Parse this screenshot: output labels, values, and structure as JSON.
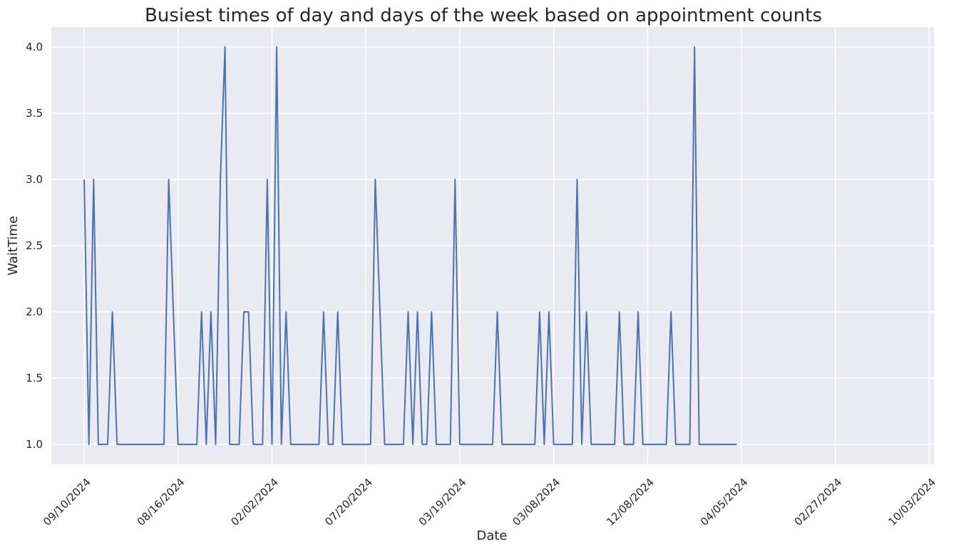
{
  "chart_data": {
    "type": "line",
    "title": "Busiest times of day and days of the week based on appointment counts",
    "xlabel": "Date",
    "ylabel": "WaitTime",
    "grid": true,
    "x_tick_labels": [
      "09/10/2024",
      "08/16/2024",
      "02/02/2024",
      "07/20/2024",
      "03/19/2024",
      "03/08/2024",
      "12/08/2024",
      "04/05/2024",
      "02/27/2024",
      "10/03/2024"
    ],
    "x_ticks": [
      0,
      20,
      40,
      60,
      80,
      100,
      120,
      140,
      160,
      180
    ],
    "y_ticks": [
      1.0,
      1.5,
      2.0,
      2.5,
      3.0,
      3.5,
      4.0
    ],
    "xlim": [
      -7,
      181
    ],
    "ylim": [
      0.85,
      4.15
    ],
    "series": [
      {
        "name": "",
        "color": "#4c72b0",
        "x": [
          0,
          1,
          2,
          3,
          4,
          5,
          6,
          7,
          8,
          9,
          10,
          11,
          12,
          13,
          14,
          15,
          16,
          17,
          18,
          19,
          20,
          21,
          22,
          23,
          24,
          25,
          26,
          27,
          28,
          29,
          30,
          31,
          32,
          33,
          34,
          35,
          36,
          37,
          38,
          39,
          40,
          41,
          42,
          43,
          44,
          45,
          46,
          47,
          48,
          49,
          50,
          51,
          52,
          53,
          54,
          55,
          56,
          57,
          58,
          59,
          60,
          61,
          62,
          63,
          64,
          65,
          66,
          67,
          68,
          69,
          70,
          71,
          72,
          73,
          74,
          75,
          76,
          77,
          78,
          79,
          80,
          81,
          82,
          83,
          84,
          85,
          86,
          87,
          88,
          89,
          90,
          91,
          92,
          93,
          94,
          95,
          96,
          97,
          98,
          99,
          100,
          101,
          102,
          103,
          104,
          105,
          106,
          107,
          108,
          109,
          110,
          111,
          112,
          113,
          114,
          115,
          116,
          117,
          118,
          119,
          120,
          121,
          122,
          123,
          124,
          125,
          126,
          127,
          128,
          129,
          130,
          131,
          132,
          133,
          134,
          135,
          136,
          137,
          138,
          139
        ],
        "values": [
          3,
          1,
          3,
          1,
          1,
          1,
          2,
          1,
          1,
          1,
          1,
          1,
          1,
          1,
          1,
          1,
          1,
          1,
          3,
          2,
          1,
          1,
          1,
          1,
          1,
          2,
          1,
          2,
          1,
          3,
          4,
          1,
          1,
          1,
          2,
          2,
          1,
          1,
          1,
          3,
          1,
          4,
          1,
          2,
          1,
          1,
          1,
          1,
          1,
          1,
          1,
          2,
          1,
          1,
          2,
          1,
          1,
          1,
          1,
          1,
          1,
          1,
          3,
          2,
          1,
          1,
          1,
          1,
          1,
          2,
          1,
          2,
          1,
          1,
          2,
          1,
          1,
          1,
          1,
          3,
          1,
          1,
          1,
          1,
          1,
          1,
          1,
          1,
          2,
          1,
          1,
          1,
          1,
          1,
          1,
          1,
          1,
          2,
          1,
          2,
          1,
          1,
          1,
          1,
          1,
          3,
          1,
          2,
          1,
          1,
          1,
          1,
          1,
          1,
          2,
          1,
          1,
          1,
          2,
          1,
          1,
          1,
          1,
          1,
          1,
          2,
          1,
          1,
          1,
          1,
          4,
          1,
          1,
          1,
          1,
          1,
          1,
          1,
          1,
          1
        ]
      }
    ]
  }
}
